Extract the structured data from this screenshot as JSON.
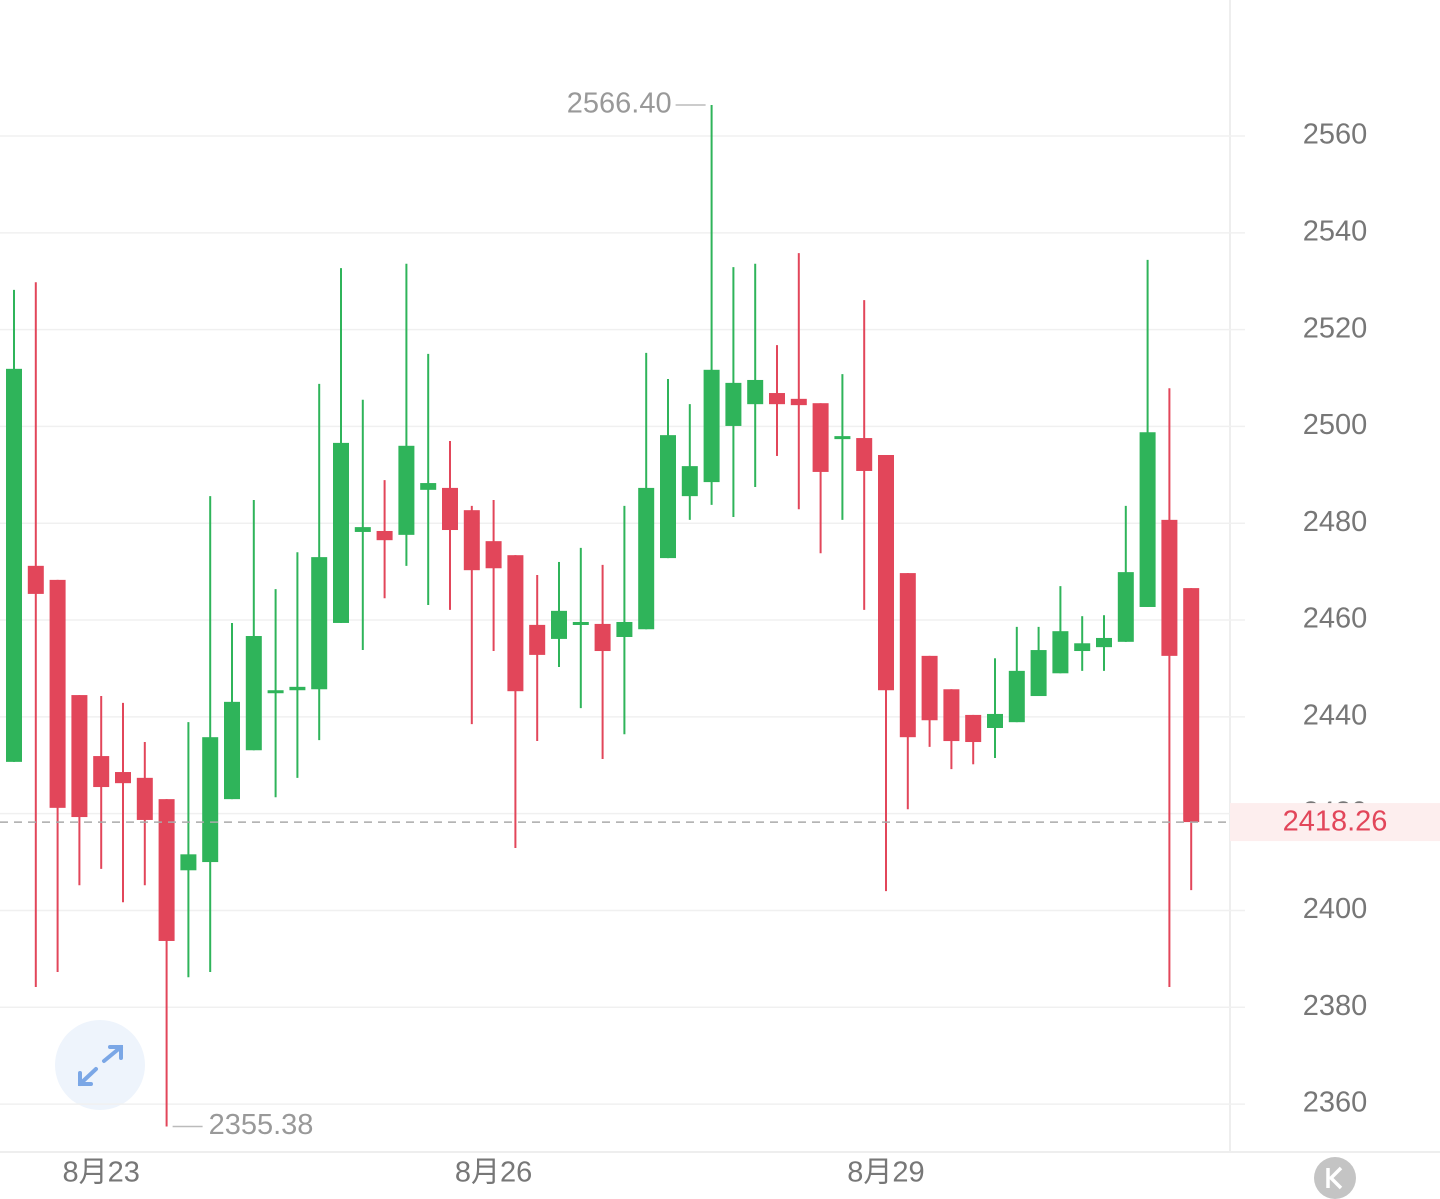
{
  "chart_data": {
    "type": "candlestick",
    "categories": [
      null,
      null,
      null,
      null,
      "8月23",
      null,
      null,
      null,
      null,
      null,
      null,
      null,
      null,
      null,
      null,
      null,
      null,
      null,
      null,
      null,
      null,
      null,
      "8月26",
      null,
      null,
      null,
      null,
      null,
      null,
      null,
      null,
      null,
      null,
      null,
      null,
      null,
      null,
      null,
      null,
      null,
      "8月29",
      null,
      null,
      null,
      null,
      null,
      null,
      null,
      null,
      null,
      null,
      null,
      null,
      null,
      null
    ],
    "open": [
      2430.7,
      2471.2,
      2468.3,
      2444.5,
      2431.9,
      2428.6,
      2427.4,
      2423.0,
      2408.3,
      2410.0,
      2423.0,
      2433.1,
      2445.1,
      2445.5,
      2445.7,
      2459.4,
      2478.2,
      2478.4,
      2477.6,
      2486.9,
      2487.3,
      2482.7,
      2476.3,
      2473.4,
      2459.0,
      2456.1,
      2459.0,
      2459.2,
      2456.5,
      2458.1,
      2472.8,
      2485.6,
      2488.5,
      2500.1,
      2504.6,
      2506.9,
      2505.7,
      2504.8,
      2497.6,
      2497.6,
      2494.1,
      2469.7,
      2452.6,
      2445.7,
      2440.4,
      2437.7,
      2438.9,
      2444.3,
      2449.0,
      2453.6,
      2454.4,
      2455.5,
      2462.7,
      2480.7,
      2466.6
    ],
    "high": [
      2528.2,
      2529.8,
      2468.3,
      2444.5,
      2444.3,
      2442.9,
      2434.8,
      2423.0,
      2438.9,
      2485.6,
      2459.4,
      2484.8,
      2466.4,
      2474.0,
      2508.8,
      2532.7,
      2505.5,
      2488.9,
      2533.6,
      2515.0,
      2497.0,
      2483.6,
      2484.8,
      2473.4,
      2469.3,
      2472.0,
      2474.9,
      2471.4,
      2483.6,
      2515.2,
      2509.8,
      2504.6,
      2566.4,
      2532.9,
      2533.6,
      2516.8,
      2535.8,
      2504.8,
      2510.8,
      2526.1,
      2494.1,
      2469.7,
      2452.6,
      2445.7,
      2440.4,
      2452.1,
      2458.6,
      2458.6,
      2467.0,
      2460.8,
      2461.0,
      2483.6,
      2534.4,
      2507.9,
      2466.6
    ],
    "low": [
      2430.7,
      2384.2,
      2387.3,
      2405.2,
      2408.6,
      2401.7,
      2405.2,
      2355.38,
      2386.2,
      2387.3,
      2423.0,
      2433.1,
      2423.4,
      2427.4,
      2435.2,
      2459.4,
      2453.8,
      2464.5,
      2471.2,
      2463.1,
      2462.1,
      2438.5,
      2453.6,
      2412.9,
      2435.0,
      2450.3,
      2441.8,
      2431.3,
      2436.4,
      2458.1,
      2472.8,
      2480.7,
      2483.8,
      2481.3,
      2487.5,
      2493.9,
      2482.9,
      2473.8,
      2480.7,
      2462.1,
      2404.0,
      2420.9,
      2433.8,
      2429.2,
      2430.2,
      2431.5,
      2438.9,
      2444.3,
      2449.0,
      2449.5,
      2449.5,
      2455.5,
      2462.7,
      2384.2,
      2404.2
    ],
    "close": [
      2511.9,
      2465.4,
      2421.2,
      2419.3,
      2425.5,
      2426.3,
      2418.7,
      2393.7,
      2411.6,
      2435.8,
      2443.1,
      2456.7,
      2445.5,
      2446.2,
      2473.0,
      2496.6,
      2479.2,
      2476.5,
      2496.0,
      2488.3,
      2478.6,
      2470.3,
      2470.7,
      2445.3,
      2452.8,
      2461.9,
      2459.6,
      2453.6,
      2459.6,
      2487.3,
      2498.2,
      2491.8,
      2511.7,
      2509.0,
      2509.6,
      2504.6,
      2504.4,
      2490.6,
      2498.0,
      2490.8,
      2445.5,
      2435.8,
      2439.3,
      2435.0,
      2434.8,
      2440.6,
      2449.5,
      2453.8,
      2457.7,
      2455.2,
      2456.3,
      2469.9,
      2498.8,
      2452.6,
      2418.26
    ],
    "up_color": "#2fb45a",
    "down_color": "#e2465a",
    "ylim": [
      2350.1,
      2588.1
    ],
    "yticks": [
      2360,
      2380,
      2400,
      2420,
      2440,
      2460,
      2480,
      2500,
      2520,
      2540,
      2560
    ],
    "grid": true,
    "annotations": [
      {
        "value": 2566.4,
        "label": "2566.40"
      },
      {
        "value": 2355.38,
        "label": "2355.38"
      }
    ],
    "last_price": {
      "value": 2418.26,
      "label": "2418.26"
    }
  }
}
